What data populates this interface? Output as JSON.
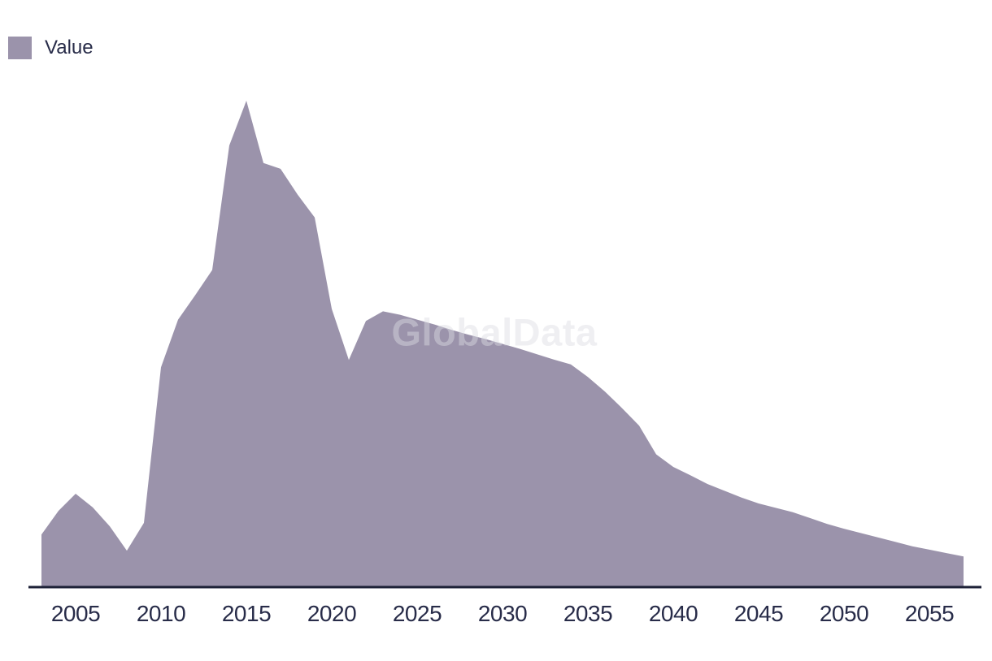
{
  "legend": {
    "label": "Value"
  },
  "watermark": {
    "text": "GlobalData"
  },
  "colors": {
    "area": "#9b93ab",
    "axis": "#1e2238",
    "text": "#282c49",
    "watermark": "#dddde3",
    "background": "#ffffff"
  },
  "chart_data": {
    "type": "area",
    "title": "",
    "subtitle": "",
    "xlabel": "",
    "ylabel": "",
    "grid": false,
    "y_axis_shown": false,
    "legend_position": "top-left",
    "units": "arbitrary (no y-axis labels shown; values normalized, peak = 100)",
    "xlim": [
      2003,
      2057
    ],
    "ylim": [
      0,
      105
    ],
    "x": [
      2003,
      2004,
      2005,
      2006,
      2007,
      2008,
      2009,
      2010,
      2011,
      2012,
      2013,
      2014,
      2015,
      2016,
      2017,
      2018,
      2019,
      2020,
      2021,
      2022,
      2023,
      2024,
      2025,
      2026,
      2027,
      2028,
      2029,
      2030,
      2031,
      2032,
      2033,
      2034,
      2035,
      2036,
      2037,
      2038,
      2039,
      2040,
      2041,
      2042,
      2043,
      2044,
      2045,
      2046,
      2047,
      2048,
      2049,
      2050,
      2051,
      2052,
      2053,
      2054,
      2055,
      2056,
      2057
    ],
    "series": [
      {
        "name": "Value",
        "values": [
          10.8,
          15.7,
          19.2,
          16.4,
          12.5,
          7.5,
          13.2,
          45.2,
          55.0,
          60.0,
          65.2,
          90.8,
          100.0,
          87.2,
          86.0,
          80.7,
          76.0,
          57.2,
          46.7,
          54.7,
          56.7,
          56.0,
          55.0,
          54.0,
          52.9,
          51.9,
          51.0,
          50.0,
          49.0,
          47.9,
          46.8,
          45.8,
          43.2,
          40.2,
          36.8,
          33.2,
          27.3,
          24.7,
          23.0,
          21.2,
          19.8,
          18.4,
          17.2,
          16.3,
          15.4,
          14.2,
          13.0,
          12.0,
          11.1,
          10.2,
          9.3,
          8.4,
          7.7,
          7.0,
          6.3
        ]
      }
    ],
    "x_tick_labels": [
      "2005",
      "2010",
      "2015",
      "2020",
      "2025",
      "2030",
      "2035",
      "2040",
      "2045",
      "2050",
      "2055"
    ]
  }
}
